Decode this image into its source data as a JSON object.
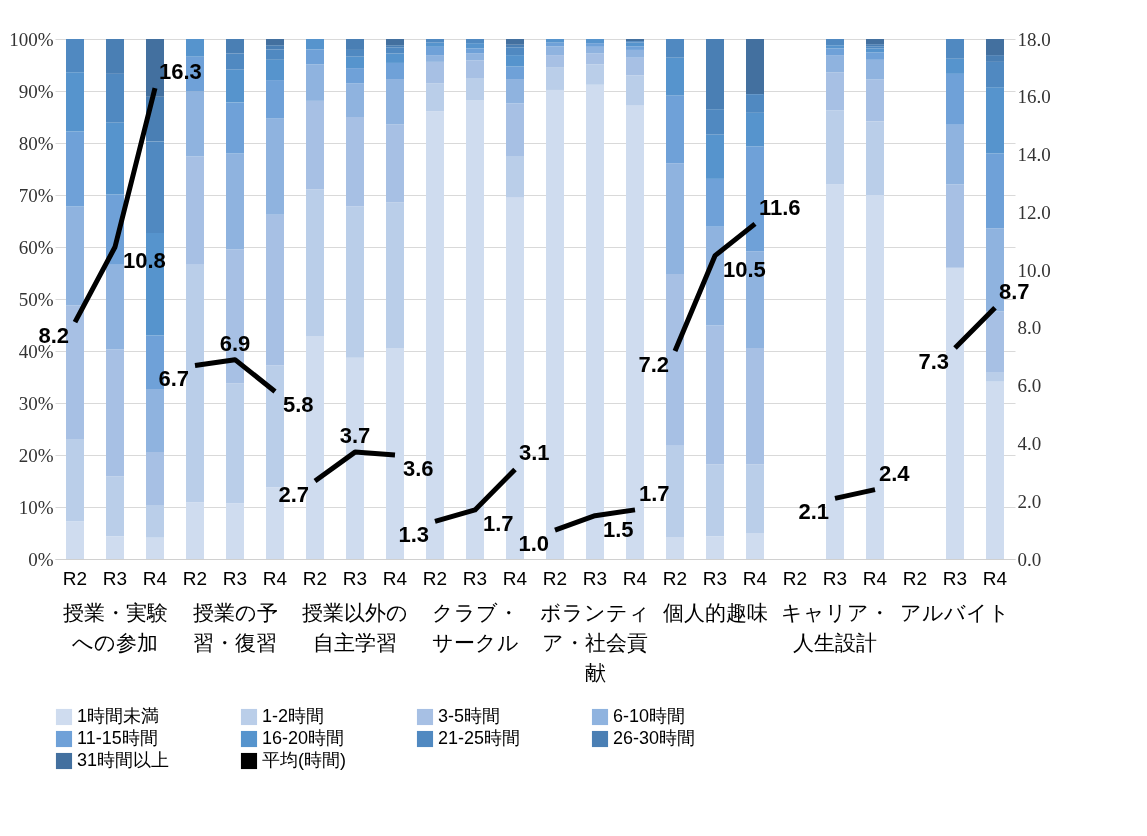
{
  "chart_data": {
    "type": "bar",
    "stacked": true,
    "legend": "bottom",
    "grid": "y",
    "categories": [
      "R2",
      "R3",
      "R4",
      "R2",
      "R3",
      "R4",
      "R2",
      "R3",
      "R4",
      "R2",
      "R3",
      "R4",
      "R2",
      "R3",
      "R4",
      "R2",
      "R3",
      "R4",
      "R2",
      "R3",
      "R4",
      "R2",
      "R3",
      "R4"
    ],
    "annotations": [
      "授業・実験への参加",
      "授業の予習・復習",
      "授業以外の自主学習",
      "クラブ・サークル",
      "ボランティア・社会貢献",
      "個人的趣味",
      "キャリア・人生設計",
      "アルバイト"
    ],
    "ylim": [
      0,
      100
    ],
    "yticks": [
      {
        "value": 0,
        "label": "0%"
      },
      {
        "value": 10,
        "label": "10%"
      },
      {
        "value": 20,
        "label": "20%"
      },
      {
        "value": 30,
        "label": "30%"
      },
      {
        "value": 40,
        "label": "40%"
      },
      {
        "value": 50,
        "label": "50%"
      },
      {
        "value": 60,
        "label": "60%"
      },
      {
        "value": 70,
        "label": "70%"
      },
      {
        "value": 80,
        "label": "80%"
      },
      {
        "value": 90,
        "label": "90%"
      },
      {
        "value": 100,
        "label": "100%"
      }
    ],
    "y2lim": [
      0,
      18
    ],
    "y2ticks": [
      {
        "value": 0,
        "label": "0.0"
      },
      {
        "value": 2,
        "label": "2.0"
      },
      {
        "value": 4,
        "label": "4.0"
      },
      {
        "value": 6,
        "label": "6.0"
      },
      {
        "value": 8,
        "label": "8.0"
      },
      {
        "value": 10,
        "label": "10.0"
      },
      {
        "value": 12,
        "label": "12.0"
      },
      {
        "value": 14,
        "label": "14.0"
      },
      {
        "value": 16,
        "label": "16.0"
      },
      {
        "value": 18,
        "label": "18.0"
      }
    ],
    "series": [
      {
        "name": "1時間未満",
        "color": "#cfdcef",
        "values": [
          7.2,
          4.4,
          4.1,
          10.9,
          10.7,
          13.8,
          42.9,
          38.7,
          40.6,
          86.1,
          88.2,
          69.6,
          90.2,
          91.2,
          87.3,
          4.2,
          4.4,
          5.0,
          null,
          72.0,
          70.0,
          null,
          56.0,
          34.1
        ]
      },
      {
        "name": "1-2時間",
        "color": "#bacee9",
        "values": [
          15.9,
          11.5,
          6.3,
          45.7,
          23.1,
          23.4,
          28.2,
          29.1,
          28.0,
          5.4,
          4.3,
          7.9,
          4.4,
          3.9,
          5.7,
          17.6,
          13.8,
          13.2,
          null,
          14.3,
          14.2,
          null,
          0,
          1.7
        ]
      },
      {
        "name": "3-5時間",
        "color": "#a7c0e4",
        "values": [
          25.7,
          24.4,
          10.2,
          20.8,
          25.7,
          29.0,
          17.0,
          17.2,
          15.0,
          4.1,
          3.4,
          10.1,
          2.3,
          2.1,
          3.4,
          33.0,
          26.7,
          22.4,
          null,
          7.3,
          8.0,
          null,
          16.0,
          11.8
        ]
      },
      {
        "name": "6-10時間",
        "color": "#8fb3df",
        "values": [
          19.0,
          16.3,
          12.1,
          12.5,
          18.5,
          18.5,
          7.0,
          6.5,
          8.7,
          1.3,
          1.3,
          4.7,
          1.7,
          1.3,
          1.5,
          21.3,
          19.0,
          18.6,
          null,
          3.3,
          3.8,
          null,
          11.5,
          16.0
        ]
      },
      {
        "name": "11-15時間",
        "color": "#6fa1d8",
        "values": [
          14.4,
          13.5,
          10.3,
          6.7,
          9.8,
          7.4,
          2.9,
          2.9,
          3.1,
          1.6,
          1.0,
          2.4,
          0.7,
          0.7,
          0.7,
          13.0,
          9.2,
          20.1,
          null,
          1.3,
          1.4,
          null,
          9.8,
          14.4
        ]
      },
      {
        "name": "16-20時間",
        "color": "#5694cd",
        "values": [
          11.4,
          13.8,
          19.7,
          3.4,
          6.3,
          3.9,
          2.0,
          2.2,
          1.8,
          0.8,
          1.0,
          2.2,
          0.7,
          0.8,
          0.7,
          7.3,
          8.5,
          6.5,
          null,
          0.6,
          0.8,
          null,
          2.9,
          12.7
        ]
      },
      {
        "name": "21-25時間",
        "color": "#5089c1",
        "values": [
          6.4,
          9.4,
          17.6,
          0,
          3.1,
          2.0,
          0,
          1.3,
          1.2,
          0.7,
          0.8,
          1.5,
          0,
          0,
          0.3,
          3.6,
          4.9,
          3.6,
          null,
          1.2,
          0.4,
          null,
          3.8,
          4.9
        ]
      },
      {
        "name": "26-30時間",
        "color": "#4a7fb4",
        "values": [
          0,
          6.7,
          8.6,
          0,
          2.8,
          0.8,
          0,
          2.1,
          0.4,
          0,
          0,
          0.5,
          0,
          0,
          0,
          0,
          13.5,
          0,
          null,
          0,
          0.4,
          null,
          0,
          1.3
        ]
      },
      {
        "name": "31時間以上",
        "color": "#43709f",
        "values": [
          0,
          0,
          11.1,
          0,
          0,
          1.2,
          0,
          0,
          1.2,
          0,
          0,
          1.1,
          0,
          0,
          0.4,
          0,
          0,
          10.6,
          null,
          0,
          1.0,
          null,
          0,
          3.1
        ]
      },
      {
        "name": "平均(時間)",
        "type": "line",
        "axis": "y2",
        "color": "#000000",
        "values": [
          8.2,
          10.8,
          16.3,
          6.7,
          6.9,
          5.8,
          2.7,
          3.7,
          3.6,
          1.3,
          1.7,
          3.1,
          1.0,
          1.5,
          1.7,
          7.2,
          10.5,
          11.6,
          null,
          2.1,
          2.4,
          null,
          7.3,
          8.7
        ],
        "value_labels": [
          "8.2",
          "10.8",
          "16.3",
          "6.7",
          "6.9",
          "5.8",
          "2.7",
          "3.7",
          "3.6",
          "1.3",
          "1.7",
          "3.1",
          "1.0",
          "1.5",
          "1.7",
          "7.2",
          "10.5",
          "11.6",
          null,
          "2.1",
          "2.4",
          null,
          "7.3",
          "8.7"
        ]
      }
    ]
  }
}
